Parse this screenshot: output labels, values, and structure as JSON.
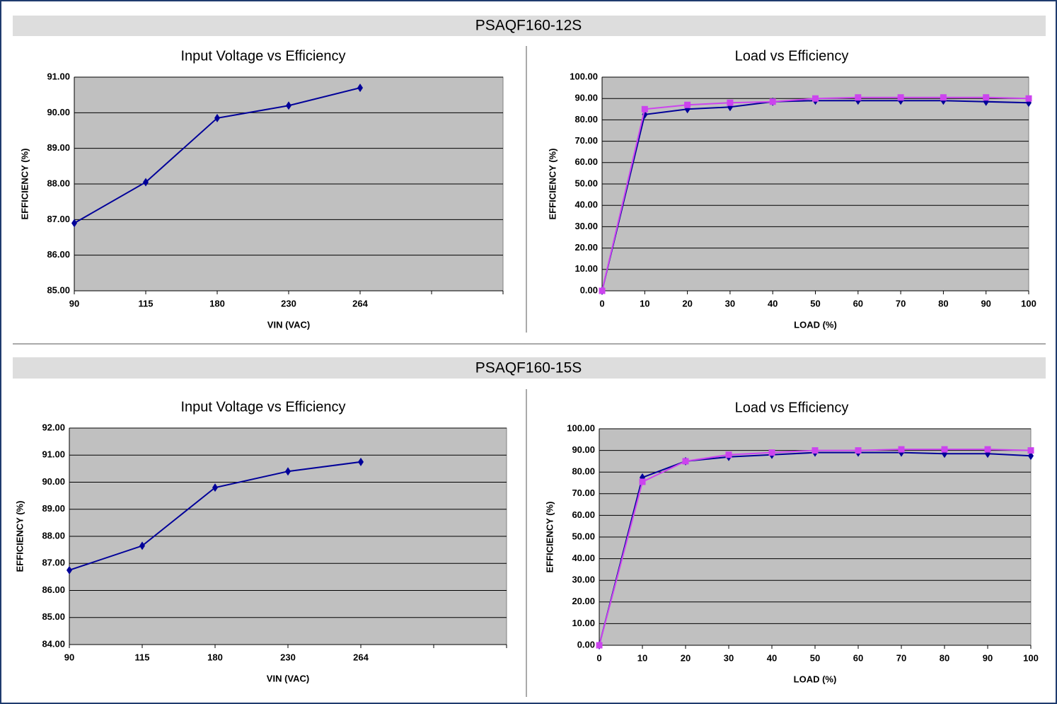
{
  "sections": [
    {
      "title": "PSAQF160-12S"
    },
    {
      "title": "PSAQF160-15S"
    }
  ],
  "chart_data": [
    {
      "type": "line",
      "title": "Input Voltage vs Efficiency",
      "x_label": "VIN (VAC)",
      "y_label": "EFFICIENCY (%)",
      "categories": [
        "90",
        "115",
        "180",
        "230",
        "264",
        null,
        null
      ],
      "values": [
        86.9,
        88.05,
        89.85,
        90.2,
        90.7,
        null,
        null
      ],
      "color": "#000099",
      "marker": "diamond",
      "ylim": [
        85,
        91
      ],
      "yticks": [
        {
          "value": 85,
          "label": "85.00"
        },
        {
          "value": 86,
          "label": "86.00"
        },
        {
          "value": 87,
          "label": "87.00"
        },
        {
          "value": 88,
          "label": "88.00"
        },
        {
          "value": 89,
          "label": "89.00"
        },
        {
          "value": 90,
          "label": "90.00"
        },
        {
          "value": 91,
          "label": "91.00"
        }
      ],
      "grid": true
    },
    {
      "type": "line",
      "title": "Load vs Efficiency",
      "x_label": "LOAD (%)",
      "y_label": "EFFICIENCY (%)",
      "x": [
        0,
        10,
        20,
        30,
        40,
        50,
        60,
        70,
        80,
        90,
        100
      ],
      "xlim": [
        0,
        100
      ],
      "xticks": [
        0,
        10,
        20,
        30,
        40,
        50,
        60,
        70,
        80,
        90,
        100
      ],
      "series": [
        {
          "color": "#000099",
          "marker": "diamond",
          "values": [
            0,
            82.5,
            85,
            86,
            88.5,
            89,
            89,
            89,
            89,
            88.5,
            88
          ]
        },
        {
          "color": "#cc44ee",
          "marker": "square",
          "values": [
            0,
            85,
            87,
            88,
            88.5,
            90,
            90.5,
            90.5,
            90.5,
            90.5,
            90
          ]
        }
      ],
      "ylim": [
        0,
        100
      ],
      "yticks": [
        {
          "value": 0,
          "label": "0.00"
        },
        {
          "value": 10,
          "label": "10.00"
        },
        {
          "value": 20,
          "label": "20.00"
        },
        {
          "value": 30,
          "label": "30.00"
        },
        {
          "value": 40,
          "label": "40.00"
        },
        {
          "value": 50,
          "label": "50.00"
        },
        {
          "value": 60,
          "label": "60.00"
        },
        {
          "value": 70,
          "label": "70.00"
        },
        {
          "value": 80,
          "label": "80.00"
        },
        {
          "value": 90,
          "label": "90.00"
        },
        {
          "value": 100,
          "label": "100.00"
        }
      ],
      "grid": true
    },
    {
      "type": "line",
      "title": "Input Voltage vs Efficiency",
      "x_label": "VIN (VAC)",
      "y_label": "EFFICIENCY (%)",
      "categories": [
        "90",
        "115",
        "180",
        "230",
        "264",
        null,
        null
      ],
      "values": [
        86.75,
        87.65,
        89.8,
        90.4,
        90.75,
        null,
        null
      ],
      "color": "#000099",
      "marker": "diamond",
      "ylim": [
        84,
        92
      ],
      "yticks": [
        {
          "value": 84,
          "label": "84.00"
        },
        {
          "value": 85,
          "label": "85.00"
        },
        {
          "value": 86,
          "label": "86.00"
        },
        {
          "value": 87,
          "label": "87.00"
        },
        {
          "value": 88,
          "label": "88.00"
        },
        {
          "value": 89,
          "label": "89.00"
        },
        {
          "value": 90,
          "label": "90.00"
        },
        {
          "value": 91,
          "label": "91.00"
        },
        {
          "value": 92,
          "label": "92.00"
        }
      ],
      "grid": true
    },
    {
      "type": "line",
      "title": "Load vs Efficiency",
      "x_label": "LOAD (%)",
      "y_label": "EFFICIENCY (%)",
      "x": [
        0,
        10,
        20,
        30,
        40,
        50,
        60,
        70,
        80,
        90,
        100
      ],
      "xlim": [
        0,
        100
      ],
      "xticks": [
        0,
        10,
        20,
        30,
        40,
        50,
        60,
        70,
        80,
        90,
        100
      ],
      "series": [
        {
          "color": "#000099",
          "marker": "diamond",
          "values": [
            0,
            77.5,
            85,
            87,
            88,
            89,
            89,
            89,
            88.5,
            88.5,
            87.5
          ]
        },
        {
          "color": "#cc44ee",
          "marker": "square",
          "values": [
            0,
            75.5,
            85,
            88,
            89,
            90,
            90,
            90.5,
            90.5,
            90.5,
            90
          ]
        }
      ],
      "ylim": [
        0,
        100
      ],
      "yticks": [
        {
          "value": 0,
          "label": "0.00"
        },
        {
          "value": 10,
          "label": "10.00"
        },
        {
          "value": 20,
          "label": "20.00"
        },
        {
          "value": 30,
          "label": "30.00"
        },
        {
          "value": 40,
          "label": "40.00"
        },
        {
          "value": 50,
          "label": "50.00"
        },
        {
          "value": 60,
          "label": "60.00"
        },
        {
          "value": 70,
          "label": "70.00"
        },
        {
          "value": 80,
          "label": "80.00"
        },
        {
          "value": 90,
          "label": "90.00"
        },
        {
          "value": 100,
          "label": "100.00"
        }
      ],
      "grid": true
    }
  ]
}
